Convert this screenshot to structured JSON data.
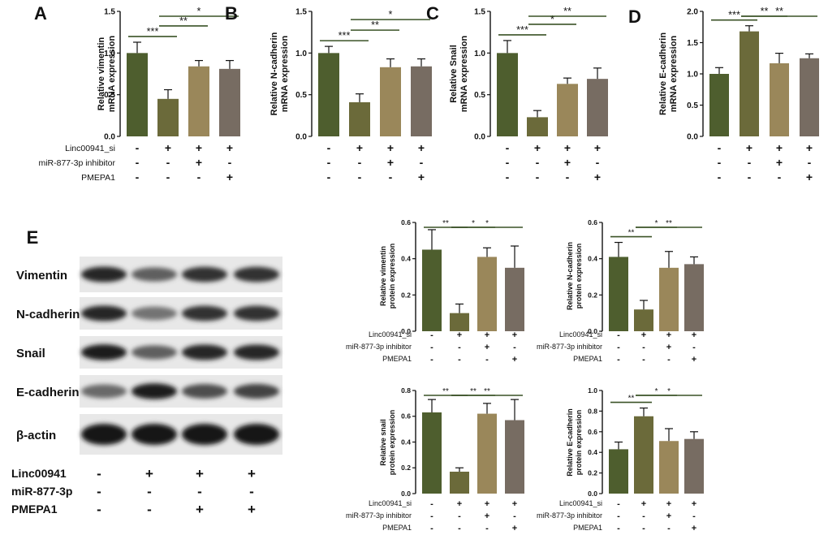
{
  "colors": {
    "bar1": "#4e5e2e",
    "bar2": "#6b6a3a",
    "bar3": "#9a875a",
    "bar4": "#776c62",
    "sig_line": "#3a5226"
  },
  "chart_data": [
    {
      "type": "bar",
      "panel_letter": "A",
      "ylabel": [
        "Relative vimentin",
        "mRNA expression"
      ],
      "ylim": [
        0,
        1.5
      ],
      "ticks": [
        "0.0",
        "0.5",
        "1.0",
        "1.5"
      ],
      "values": [
        1.0,
        0.45,
        0.84,
        0.81
      ],
      "errors": [
        0.13,
        0.11,
        0.07,
        0.1
      ],
      "conditions": [
        {
          "label": "Linc00941_si",
          "signs": [
            "-",
            "+",
            "+",
            "+"
          ]
        },
        {
          "label": "miR-877-3p inhibitor",
          "signs": [
            "-",
            "-",
            "+",
            "-"
          ]
        },
        {
          "label": "PMEPA1",
          "signs": [
            "-",
            "-",
            "-",
            "+"
          ]
        }
      ],
      "significance": [
        {
          "from": 0,
          "to": 1,
          "label": "***"
        },
        {
          "from": 1,
          "to": 2,
          "label": "**"
        },
        {
          "from": 1,
          "to": 3,
          "label": "*"
        }
      ]
    },
    {
      "type": "bar",
      "panel_letter": "B",
      "ylabel": [
        "Relative N-cadherin",
        "mRNA expression"
      ],
      "ylim": [
        0,
        1.5
      ],
      "ticks": [
        "0.0",
        "0.5",
        "1.0",
        "1.5"
      ],
      "values": [
        1.0,
        0.41,
        0.83,
        0.84
      ],
      "errors": [
        0.08,
        0.1,
        0.1,
        0.09
      ],
      "conditions": [
        {
          "label": "",
          "signs": [
            "-",
            "+",
            "+",
            "+"
          ]
        },
        {
          "label": "",
          "signs": [
            "-",
            "-",
            "+",
            "-"
          ]
        },
        {
          "label": "",
          "signs": [
            "-",
            "-",
            "-",
            "+"
          ]
        }
      ],
      "significance": [
        {
          "from": 0,
          "to": 1,
          "label": "***"
        },
        {
          "from": 1,
          "to": 2,
          "label": "**"
        },
        {
          "from": 1,
          "to": 3,
          "label": "*"
        }
      ]
    },
    {
      "type": "bar",
      "panel_letter": "C",
      "ylabel": [
        "Relative Snail",
        "mRNA expression"
      ],
      "ylim": [
        0,
        1.5
      ],
      "ticks": [
        "0.0",
        "0.5",
        "1.0",
        "1.5"
      ],
      "values": [
        1.0,
        0.23,
        0.63,
        0.69
      ],
      "errors": [
        0.15,
        0.08,
        0.07,
        0.13
      ],
      "conditions": [
        {
          "label": "",
          "signs": [
            "-",
            "+",
            "+",
            "+"
          ]
        },
        {
          "label": "",
          "signs": [
            "-",
            "-",
            "+",
            "-"
          ]
        },
        {
          "label": "",
          "signs": [
            "-",
            "-",
            "-",
            "+"
          ]
        }
      ],
      "significance": [
        {
          "from": 0,
          "to": 1,
          "label": "***"
        },
        {
          "from": 1,
          "to": 2,
          "label": "*"
        },
        {
          "from": 1,
          "to": 3,
          "label": "**"
        }
      ]
    },
    {
      "type": "bar",
      "panel_letter": "D",
      "ylabel": [
        "Relative E-cadherin",
        "mRNA expression"
      ],
      "ylim": [
        0,
        2.0
      ],
      "ticks": [
        "0.0",
        "0.5",
        "1.0",
        "1.5",
        "2.0"
      ],
      "values": [
        1.0,
        1.68,
        1.17,
        1.25
      ],
      "errors": [
        0.1,
        0.09,
        0.16,
        0.07
      ],
      "conditions": [
        {
          "label": "",
          "signs": [
            "-",
            "+",
            "+",
            "+"
          ]
        },
        {
          "label": "",
          "signs": [
            "-",
            "-",
            "+",
            "-"
          ]
        },
        {
          "label": "",
          "signs": [
            "-",
            "-",
            "-",
            "+"
          ]
        }
      ],
      "significance": [
        {
          "from": 0,
          "to": 1,
          "label": "***"
        },
        {
          "from": 1,
          "to": 2,
          "label": "**"
        },
        {
          "from": 1,
          "to": 3,
          "label": "**"
        }
      ]
    },
    {
      "type": "bar",
      "ylabel": [
        "Relative vimentin",
        "protein expression"
      ],
      "ylim": [
        0,
        0.6
      ],
      "ticks": [
        "0.0",
        "0.2",
        "0.4",
        "0.6"
      ],
      "values": [
        0.45,
        0.1,
        0.41,
        0.35
      ],
      "errors": [
        0.11,
        0.05,
        0.05,
        0.12
      ],
      "conditions": [
        {
          "label": "Linc00941_si",
          "signs": [
            "-",
            "+",
            "+",
            "+"
          ]
        },
        {
          "label": "miR-877-3p inhibitor",
          "signs": [
            "-",
            "-",
            "+",
            "-"
          ]
        },
        {
          "label": "PMEPA1",
          "signs": [
            "-",
            "-",
            "-",
            "+"
          ]
        }
      ],
      "significance": [
        {
          "from": 0,
          "to": 1,
          "label": "**"
        },
        {
          "from": 1,
          "to": 2,
          "label": "*"
        },
        {
          "from": 1,
          "to": 3,
          "label": "*"
        }
      ]
    },
    {
      "type": "bar",
      "ylabel": [
        "Relative N-cadherin",
        "protein expression"
      ],
      "ylim": [
        0,
        0.6
      ],
      "ticks": [
        "0.0",
        "0.2",
        "0.4",
        "0.6"
      ],
      "values": [
        0.41,
        0.12,
        0.35,
        0.37
      ],
      "errors": [
        0.08,
        0.05,
        0.09,
        0.04
      ],
      "conditions": [
        {
          "label": "Linc00941_si",
          "signs": [
            "-",
            "+",
            "+",
            "+"
          ]
        },
        {
          "label": "miR-877-3p inhibitor",
          "signs": [
            "-",
            "-",
            "+",
            "-"
          ]
        },
        {
          "label": "PMEPA1",
          "signs": [
            "-",
            "-",
            "-",
            "+"
          ]
        }
      ],
      "significance": [
        {
          "from": 0,
          "to": 1,
          "label": "**"
        },
        {
          "from": 1,
          "to": 2,
          "label": "*"
        },
        {
          "from": 1,
          "to": 3,
          "label": "**"
        }
      ]
    },
    {
      "type": "bar",
      "ylabel": [
        "Relative snail",
        "protein expression"
      ],
      "ylim": [
        0,
        0.8
      ],
      "ticks": [
        "0.0",
        "0.2",
        "0.4",
        "0.6",
        "0.8"
      ],
      "values": [
        0.63,
        0.17,
        0.62,
        0.57
      ],
      "errors": [
        0.1,
        0.03,
        0.08,
        0.16
      ],
      "conditions": [
        {
          "label": "Linc00941_si",
          "signs": [
            "-",
            "+",
            "+",
            "+"
          ]
        },
        {
          "label": "miR-877-3p inhibitor",
          "signs": [
            "-",
            "-",
            "+",
            "-"
          ]
        },
        {
          "label": "PMEPA1",
          "signs": [
            "-",
            "-",
            "-",
            "+"
          ]
        }
      ],
      "significance": [
        {
          "from": 0,
          "to": 1,
          "label": "**"
        },
        {
          "from": 1,
          "to": 2,
          "label": "**"
        },
        {
          "from": 1,
          "to": 3,
          "label": "**"
        }
      ]
    },
    {
      "type": "bar",
      "ylabel": [
        "Relative E-cadherin",
        "protein expression"
      ],
      "ylim": [
        0,
        1.0
      ],
      "ticks": [
        "0.0",
        "0.2",
        "0.4",
        "0.6",
        "0.8",
        "1.0"
      ],
      "values": [
        0.43,
        0.75,
        0.51,
        0.53
      ],
      "errors": [
        0.07,
        0.08,
        0.12,
        0.07
      ],
      "conditions": [
        {
          "label": "Linc00941_si",
          "signs": [
            "-",
            "+",
            "+",
            "+"
          ]
        },
        {
          "label": "miR-877-3p inhibitor",
          "signs": [
            "-",
            "-",
            "+",
            "-"
          ]
        },
        {
          "label": "PMEPA1",
          "signs": [
            "-",
            "-",
            "-",
            "+"
          ]
        }
      ],
      "significance": [
        {
          "from": 0,
          "to": 1,
          "label": "**"
        },
        {
          "from": 1,
          "to": 2,
          "label": "*"
        },
        {
          "from": 1,
          "to": 3,
          "label": "*"
        }
      ]
    }
  ],
  "western_blot": {
    "panel_letter": "E",
    "rows": [
      "Vimentin",
      "N-cadherin",
      "Snail",
      "E-cadherin",
      "β-actin"
    ],
    "band_intensity": [
      [
        0.85,
        0.55,
        0.8,
        0.8
      ],
      [
        0.85,
        0.45,
        0.8,
        0.8
      ],
      [
        0.9,
        0.55,
        0.85,
        0.85
      ],
      [
        0.5,
        0.9,
        0.65,
        0.7
      ],
      [
        0.95,
        0.95,
        0.95,
        0.95
      ]
    ],
    "conditions": [
      {
        "label": "Linc00941",
        "signs": [
          "-",
          "+",
          "+",
          "+"
        ]
      },
      {
        "label": "miR-877-3p",
        "signs": [
          "-",
          "-",
          "-",
          "-"
        ]
      },
      {
        "label": "PMEPA1",
        "signs": [
          "-",
          "-",
          "+",
          "+"
        ]
      }
    ]
  }
}
